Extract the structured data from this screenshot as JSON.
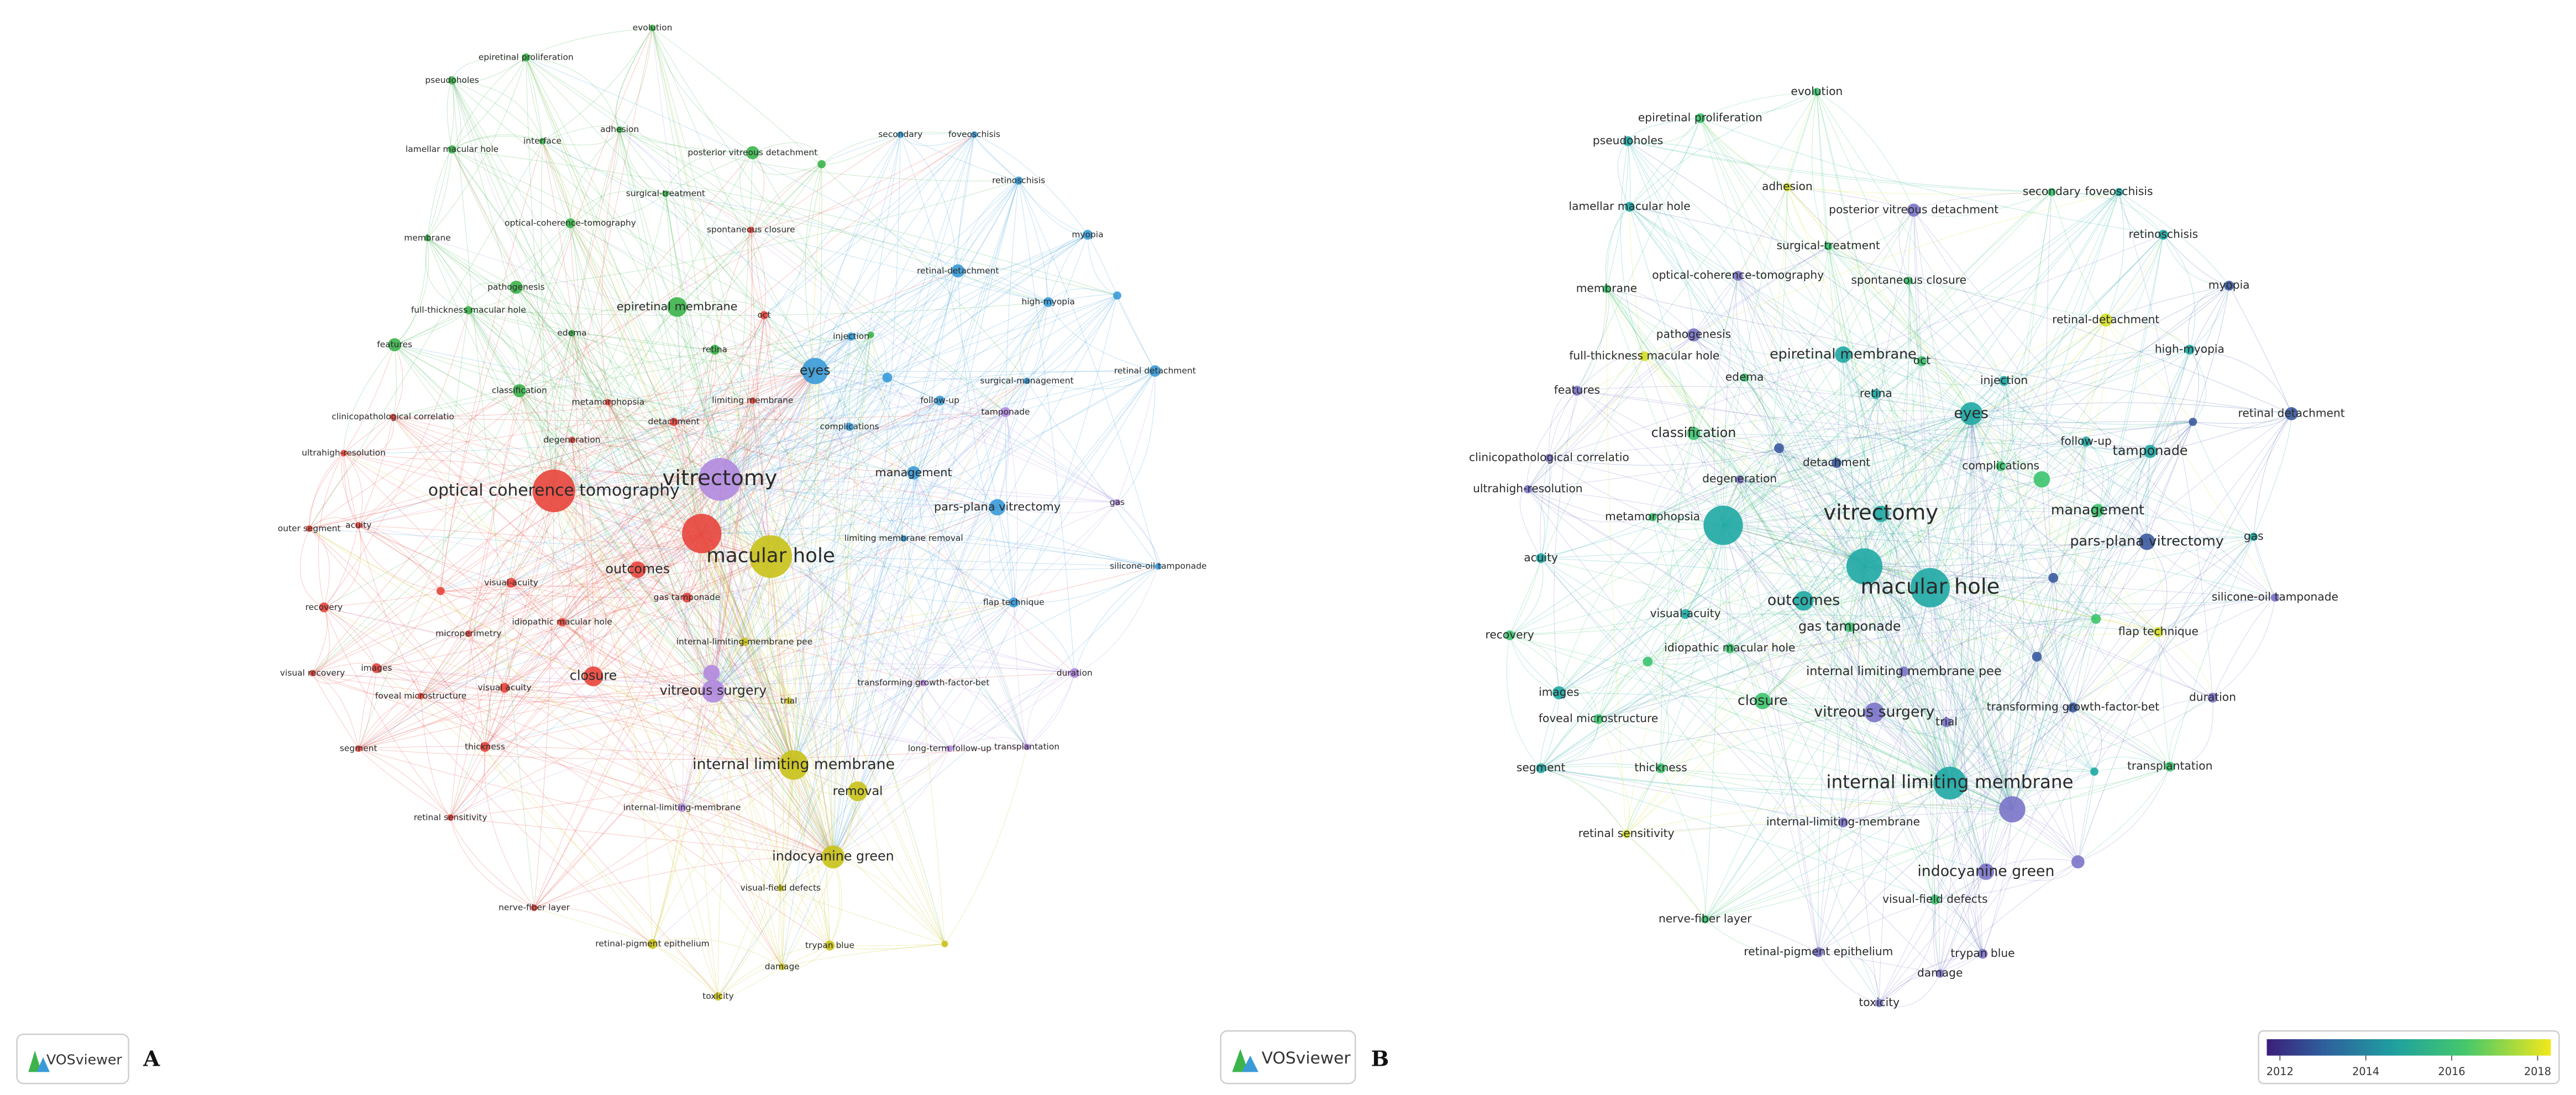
{
  "panel_a": {
    "label": "A",
    "logo": "VOSviewer",
    "nodes": [
      "evolution",
      "epiretinal proliferation",
      "pseudoholes",
      "adhesion",
      "interface",
      "lamellar macular hole",
      "posterior vitreous detachment",
      "surgical-treatment",
      "optical-coherence-tomography",
      "spontaneous closure",
      "membrane",
      "pathogenesis",
      "full-thickness macular hole",
      "epiretinal membrane",
      "oct",
      "edema",
      "features",
      "retina",
      "injection",
      "secondary",
      "foveoschisis",
      "retinoschisis",
      "myopia",
      "retinal-detachment",
      "high-myopia",
      "surgical-management",
      "retinal detachment",
      "eyes",
      "follow-up",
      "tamponade",
      "classification",
      "clinicopathological correlatio",
      "metamorphopsia",
      "limiting membrane",
      "detachment",
      "complications",
      "ultrahigh-resolution",
      "degeneration",
      "optical coherence tomography",
      "vitrectomy",
      "management",
      "pars-plana vitrectomy",
      "gas",
      "outer segment",
      "acuity",
      "limiting membrane removal",
      "macular hole",
      "silicone-oil tamponade",
      "outcomes",
      "visual-acuity",
      "gas tamponade",
      "recovery",
      "idiopathic macular hole",
      "microperimetry",
      "flap technique",
      "internal-limiting-membrane pee",
      "visual recovery",
      "images",
      "duration",
      "closure",
      "transforming growth-factor-bet",
      "visual acuity",
      "foveal microstructure",
      "vitreous surgery",
      "trial",
      "segment",
      "thickness",
      "long-term follow-up",
      "transplantation",
      "internal limiting membrane",
      "removal",
      "internal-limiting-membrane",
      "retinal sensitivity",
      "indocyanine green",
      "visual-field defects",
      "nerve-fiber layer",
      "retinal-pigment epithelium",
      "trypan blue",
      "damage",
      "toxicity"
    ]
  },
  "panel_b": {
    "label": "B",
    "logo": "VOSviewer",
    "nodes": [
      "evolution",
      "epiretinal proliferation",
      "pseudoholes",
      "adhesion",
      "secondary",
      "foveoschisis",
      "lamellar macular hole",
      "posterior vitreous detachment",
      "surgical-treatment",
      "retinoschisis",
      "optical-coherence-tomography",
      "spontaneous closure",
      "membrane",
      "myopia",
      "retinal-detachment",
      "pathogenesis",
      "high-myopia",
      "epiretinal membrane",
      "full-thickness macular hole",
      "oct",
      "edema",
      "injection",
      "features",
      "retina",
      "eyes",
      "retinal detachment",
      "classification",
      "follow-up",
      "tamponade",
      "clinicopathological correlatio",
      "detachment",
      "complications",
      "degeneration",
      "ultrahigh-resolution",
      "vitrectomy",
      "management",
      "metamorphopsia",
      "gas",
      "pars-plana vitrectomy",
      "acuity",
      "macular hole",
      "silicone-oil tamponade",
      "outcomes",
      "visual-acuity",
      "gas tamponade",
      "recovery",
      "flap technique",
      "idiopathic macular hole",
      "internal limiting membrane pee",
      "images",
      "duration",
      "transforming growth-factor-bet",
      "closure",
      "vitreous surgery",
      "trial",
      "foveal microstructure",
      "segment",
      "thickness",
      "transplantation",
      "internal limiting membrane",
      "internal-limiting-membrane",
      "retinal sensitivity",
      "indocyanine green",
      "visual-field defects",
      "nerve-fiber layer",
      "retinal-pigment epithelium",
      "trypan blue",
      "damage",
      "toxicity"
    ],
    "colorbar": {
      "ticks": [
        2012,
        2014,
        2016,
        2018
      ]
    }
  }
}
